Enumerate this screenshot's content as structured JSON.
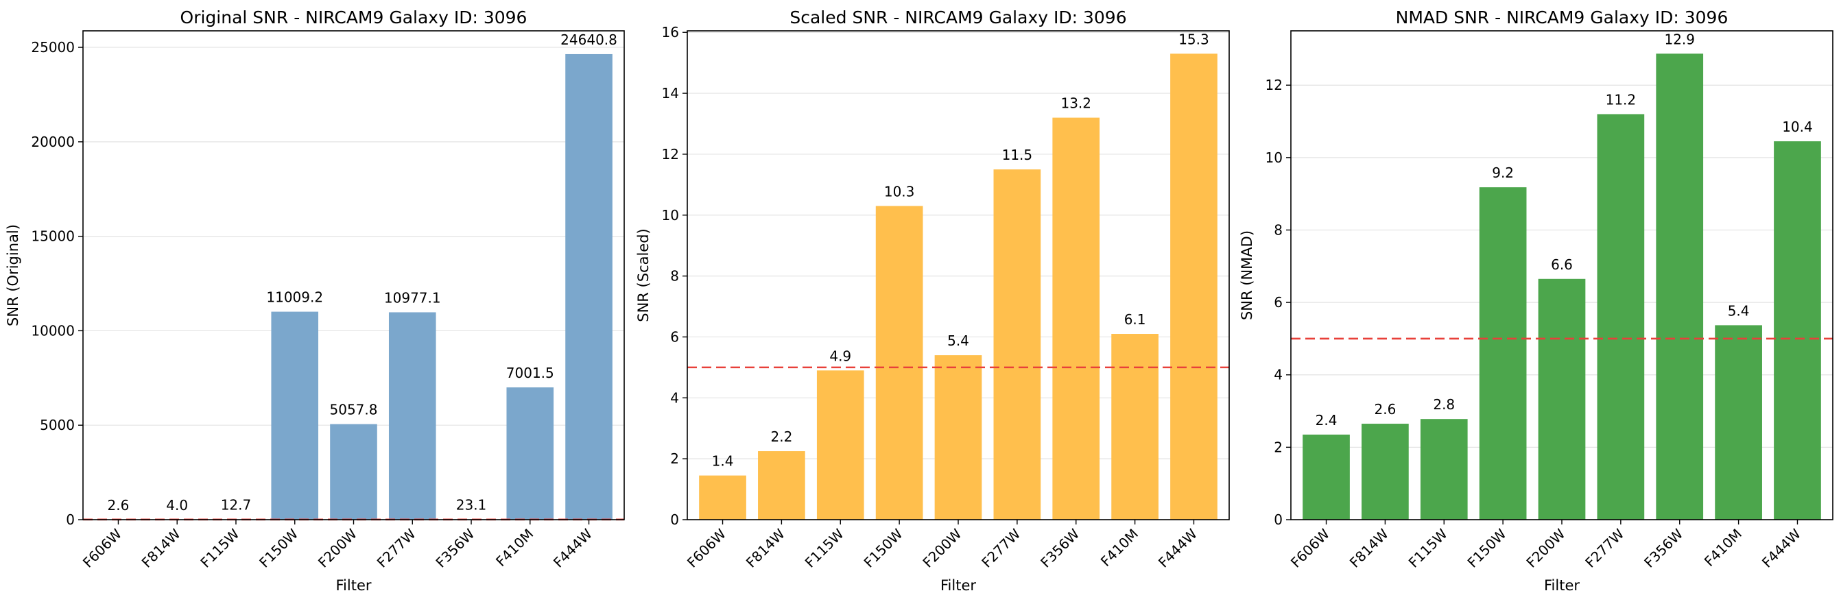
{
  "chart_data": [
    {
      "type": "bar",
      "title": "Original SNR - NIRCAM9 Galaxy ID: 3096",
      "xlabel": "Filter",
      "ylabel": "SNR (Original)",
      "categories": [
        "F606W",
        "F814W",
        "F115W",
        "F150W",
        "F200W",
        "F277W",
        "F356W",
        "F410M",
        "F444W"
      ],
      "values": [
        2.6,
        4.0,
        12.7,
        11009.2,
        5057.8,
        10977.1,
        23.1,
        7001.5,
        24640.8
      ],
      "value_labels": [
        "2.6",
        "4.0",
        "12.7",
        "11009.2",
        "5057.8",
        "10977.1",
        "23.1",
        "7001.5",
        "24640.8"
      ],
      "yticks": [
        0,
        5000,
        10000,
        15000,
        20000,
        25000
      ],
      "ylim": [
        0,
        25873
      ],
      "threshold": 5,
      "color": "#7ba7cc",
      "threshold_color": "#e8403a",
      "grid": true
    },
    {
      "type": "bar",
      "title": "Scaled SNR - NIRCAM9 Galaxy ID: 3096",
      "xlabel": "Filter",
      "ylabel": "SNR (Scaled)",
      "categories": [
        "F606W",
        "F814W",
        "F115W",
        "F150W",
        "F200W",
        "F277W",
        "F356W",
        "F410M",
        "F444W"
      ],
      "values": [
        1.45,
        2.25,
        4.9,
        10.3,
        5.4,
        11.5,
        13.2,
        6.1,
        15.3
      ],
      "value_labels": [
        "1.4",
        "2.2",
        "4.9",
        "10.3",
        "5.4",
        "11.5",
        "13.2",
        "6.1",
        "15.3"
      ],
      "yticks": [
        0,
        2,
        4,
        6,
        8,
        10,
        12,
        14,
        16
      ],
      "ylim": [
        0,
        16.05
      ],
      "threshold": 5,
      "color": "#ffbf4d",
      "threshold_color": "#e8403a",
      "grid": true
    },
    {
      "type": "bar",
      "title": "NMAD SNR - NIRCAM9 Galaxy ID: 3096",
      "xlabel": "Filter",
      "ylabel": "SNR (NMAD)",
      "categories": [
        "F606W",
        "F814W",
        "F115W",
        "F150W",
        "F200W",
        "F277W",
        "F356W",
        "F410M",
        "F444W"
      ],
      "values": [
        2.35,
        2.65,
        2.78,
        9.18,
        6.65,
        11.2,
        12.87,
        5.37,
        10.45
      ],
      "value_labels": [
        "2.4",
        "2.6",
        "2.8",
        "9.2",
        "6.6",
        "11.2",
        "12.9",
        "5.4",
        "10.4"
      ],
      "yticks": [
        0,
        2,
        4,
        6,
        8,
        10,
        12
      ],
      "ylim": [
        0,
        13.5
      ],
      "threshold": 5,
      "color": "#4ca64c",
      "threshold_color": "#e8403a",
      "grid": true
    }
  ]
}
